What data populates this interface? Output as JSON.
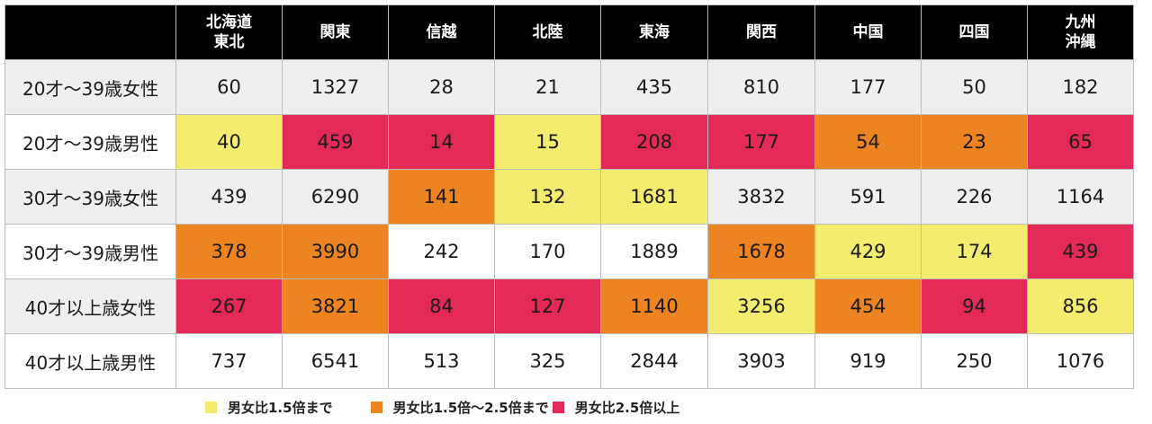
{
  "chart_data": {
    "type": "table",
    "columns": [
      "北海道\n東北",
      "関東",
      "信越",
      "北陸",
      "東海",
      "関西",
      "中国",
      "四国",
      "九州\n沖縄"
    ],
    "rows": [
      {
        "label": "20才〜39歳女性",
        "values": [
          60,
          1327,
          28,
          21,
          435,
          810,
          177,
          50,
          182
        ],
        "categories": [
          "none",
          "none",
          "none",
          "none",
          "none",
          "none",
          "none",
          "none",
          "none"
        ]
      },
      {
        "label": "20才〜39歳男性",
        "values": [
          40,
          459,
          14,
          15,
          208,
          177,
          54,
          23,
          65
        ],
        "categories": [
          "low",
          "high",
          "high",
          "low",
          "high",
          "high",
          "mid",
          "mid",
          "high"
        ]
      },
      {
        "label": "30才〜39歳女性",
        "values": [
          439,
          6290,
          141,
          132,
          1681,
          3832,
          591,
          226,
          1164
        ],
        "categories": [
          "none",
          "none",
          "mid",
          "low",
          "low",
          "none",
          "none",
          "none",
          "none"
        ]
      },
      {
        "label": "30才〜39歳男性",
        "values": [
          378,
          3990,
          242,
          170,
          1889,
          1678,
          429,
          174,
          439
        ],
        "categories": [
          "mid",
          "mid",
          "none",
          "none",
          "none",
          "mid",
          "low",
          "low",
          "high"
        ]
      },
      {
        "label": "40才以上歳女性",
        "values": [
          267,
          3821,
          84,
          127,
          1140,
          3256,
          454,
          94,
          856
        ],
        "categories": [
          "high",
          "mid",
          "high",
          "high",
          "mid",
          "low",
          "mid",
          "high",
          "low"
        ]
      },
      {
        "label": "40才以上歳男性",
        "values": [
          737,
          6541,
          513,
          325,
          2844,
          3903,
          919,
          250,
          1076
        ],
        "categories": [
          "none",
          "none",
          "none",
          "none",
          "none",
          "none",
          "none",
          "none",
          "none"
        ]
      }
    ],
    "legend": [
      {
        "key": "low",
        "label": "男女比1.5倍まで",
        "color": "#f3ec6e"
      },
      {
        "key": "mid",
        "label": "男女比1.5倍〜2.5倍まで",
        "color": "#ec8422"
      },
      {
        "key": "high",
        "label": "男女比2.5倍以上",
        "color": "#e22957"
      }
    ],
    "header_color": "#000000",
    "shaded_row_color": "#efefef"
  }
}
